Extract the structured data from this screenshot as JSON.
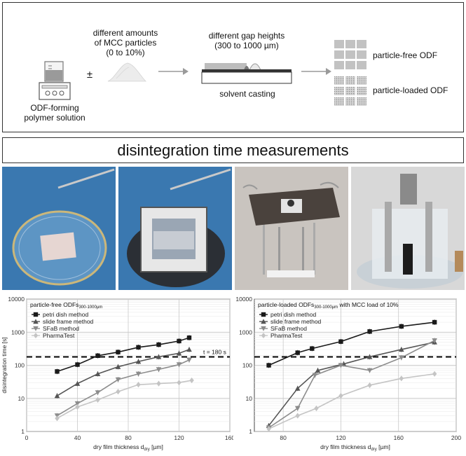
{
  "workflow": {
    "mcc_label_lines": [
      "different amounts",
      "of MCC particles",
      "(0 to 10%)"
    ],
    "plus_minus": "±",
    "polymer_label_lines": [
      "ODF-forming",
      "polymer solution"
    ],
    "gap_label_lines": [
      "different gap heights",
      "(300 to 1000 µm)"
    ],
    "casting_label": "solvent casting",
    "particle_free_label": "particle-free ODF",
    "particle_loaded_label": "particle-loaded ODF"
  },
  "banner": {
    "title": "disintegration time measurements"
  },
  "photos": [
    "petri-dish-photo",
    "slide-frame-photo",
    "sfab-photo",
    "pharmatest-photo"
  ],
  "colors": {
    "petri": "#1a1a1a",
    "slide": "#555555",
    "sfab": "#8c8c8c",
    "pharma": "#c4c4c4",
    "threshold": "#000000"
  },
  "chart_data": [
    {
      "type": "line",
      "title": "particle-free ODFs",
      "title_subscript": "300-1000µm",
      "xlabel": "dry film thickness d",
      "xlabel_subscript": "dry",
      "xlabel_unit": " [µm]",
      "ylabel": "disintegration time [s]",
      "xlim": [
        0,
        160
      ],
      "ylim": [
        1,
        10000
      ],
      "yscale": "log",
      "xticks": [
        0,
        40,
        80,
        120,
        160
      ],
      "yticks": [
        1,
        10,
        100,
        1000,
        10000
      ],
      "ytick_labels": [
        "1",
        "10",
        "100",
        "1000",
        "10000"
      ],
      "legend_position": "top-left",
      "grid": true,
      "threshold": {
        "y": 180,
        "label": "t = 180 s"
      },
      "series": [
        {
          "name": "petri dish method",
          "marker": "square",
          "x": [
            24,
            40,
            56,
            72,
            88,
            104,
            120,
            128
          ],
          "y": [
            65,
            105,
            195,
            250,
            350,
            420,
            540,
            680
          ]
        },
        {
          "name": "slide frame method",
          "marker": "triangle",
          "x": [
            24,
            40,
            56,
            72,
            88,
            104,
            120,
            128
          ],
          "y": [
            12,
            28,
            55,
            90,
            130,
            180,
            230,
            300
          ]
        },
        {
          "name": "SFaB method",
          "marker": "triangle-down",
          "x": [
            24,
            40,
            56,
            72,
            88,
            104,
            120,
            128
          ],
          "y": [
            3,
            7,
            15,
            37,
            55,
            75,
            105,
            145
          ]
        },
        {
          "name": "PharmaTest",
          "marker": "diamond",
          "x": [
            24,
            40,
            56,
            72,
            88,
            104,
            120,
            130
          ],
          "y": [
            2.5,
            5.5,
            9,
            16,
            26,
            28,
            30,
            35
          ]
        }
      ]
    },
    {
      "type": "line",
      "title": "particle-loaded ODFs",
      "title_subscript": "300-1000µm",
      "title_suffix": " with MCC load of 10%",
      "xlabel": "dry film thickness d",
      "xlabel_subscript": "dry",
      "xlabel_unit": " [µm]",
      "ylabel": "disintegration time [s]",
      "xlim": [
        60,
        200
      ],
      "ylim": [
        1,
        10000
      ],
      "yscale": "log",
      "xticks": [
        80,
        120,
        160,
        200
      ],
      "yticks": [
        1,
        10,
        100,
        1000,
        10000
      ],
      "ytick_labels": [
        "1",
        "10",
        "100",
        "1000",
        "10000"
      ],
      "legend_position": "top-left",
      "grid": true,
      "threshold": {
        "y": 180
      },
      "series": [
        {
          "name": "petri dish method",
          "marker": "square",
          "x": [
            70,
            90,
            100,
            120,
            140,
            162,
            185
          ],
          "y": [
            100,
            240,
            320,
            520,
            1050,
            1500,
            2000
          ]
        },
        {
          "name": "slide frame method",
          "marker": "triangle",
          "x": [
            70,
            90,
            104,
            122,
            140,
            162,
            185
          ],
          "y": [
            1.5,
            20,
            70,
            110,
            180,
            300,
            500
          ]
        },
        {
          "name": "SFaB method",
          "marker": "triangle-down",
          "x": [
            70,
            90,
            102,
            120,
            140,
            162,
            185
          ],
          "y": [
            1.3,
            5,
            50,
            100,
            70,
            170,
            560
          ]
        },
        {
          "name": "PharmaTest",
          "marker": "diamond",
          "x": [
            70,
            90,
            103,
            120,
            140,
            162,
            185
          ],
          "y": [
            1.2,
            3,
            5,
            12,
            25,
            40,
            55
          ]
        }
      ]
    }
  ]
}
